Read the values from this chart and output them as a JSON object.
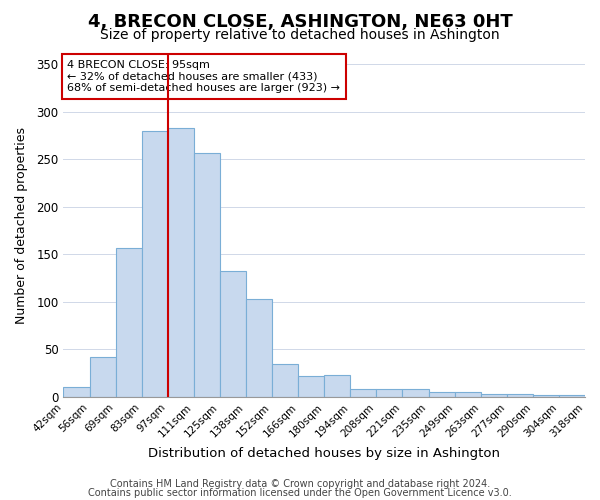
{
  "title": "4, BRECON CLOSE, ASHINGTON, NE63 0HT",
  "subtitle": "Size of property relative to detached houses in Ashington",
  "xlabel": "Distribution of detached houses by size in Ashington",
  "ylabel": "Number of detached properties",
  "bar_color": "#c8d9ee",
  "bar_edge_color": "#7aaed6",
  "bin_labels": [
    "42sqm",
    "56sqm",
    "69sqm",
    "83sqm",
    "97sqm",
    "111sqm",
    "125sqm",
    "138sqm",
    "152sqm",
    "166sqm",
    "180sqm",
    "194sqm",
    "208sqm",
    "221sqm",
    "235sqm",
    "249sqm",
    "263sqm",
    "277sqm",
    "290sqm",
    "304sqm",
    "318sqm"
  ],
  "values": [
    10,
    42,
    157,
    280,
    283,
    257,
    133,
    103,
    35,
    22,
    23,
    8,
    8,
    8,
    5,
    5,
    3,
    3,
    2,
    2
  ],
  "marker_bin_index": 4,
  "marker_color": "#cc0000",
  "annotation_line1": "4 BRECON CLOSE: 95sqm",
  "annotation_line2": "← 32% of detached houses are smaller (433)",
  "annotation_line3": "68% of semi-detached houses are larger (923) →",
  "annotation_box_facecolor": "#ffffff",
  "annotation_box_edgecolor": "#cc0000",
  "ylim": [
    0,
    360
  ],
  "yticks": [
    0,
    50,
    100,
    150,
    200,
    250,
    300,
    350
  ],
  "footer1": "Contains HM Land Registry data © Crown copyright and database right 2024.",
  "footer2": "Contains public sector information licensed under the Open Government Licence v3.0.",
  "title_fontsize": 13,
  "subtitle_fontsize": 10,
  "xlabel_fontsize": 9.5,
  "ylabel_fontsize": 9,
  "tick_fontsize": 7.5,
  "footer_fontsize": 7,
  "annotation_fontsize": 8
}
